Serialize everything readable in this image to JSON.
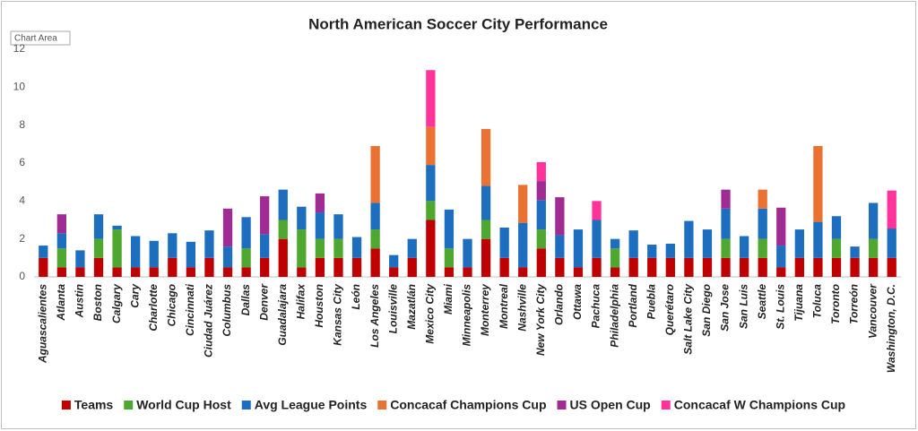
{
  "chart_data": {
    "type": "stacked-bar",
    "title": "North American Soccer City Performance",
    "tooltip": "Chart Area",
    "categories": [
      "Aguascalientes",
      "Atlanta",
      "Austin",
      "Boston",
      "Calgary",
      "Cary",
      "Charlotte",
      "Chicago",
      "Cincinnati",
      "Ciudad Juárez",
      "Columbus",
      "Dallas",
      "Denver",
      "Guadalajara",
      "Halifax",
      "Houston",
      "Kansas City",
      "León",
      "Los Angeles",
      "Louisville",
      "Mazatlán",
      "Mexico City",
      "Miami",
      "Minneapolis",
      "Monterrey",
      "Montreal",
      "Nashville",
      "New York City",
      "Orlando",
      "Ottawa",
      "Pachuca",
      "Philadelphia",
      "Portland",
      "Puebla",
      "Querétaro",
      "Salt Lake City",
      "San Diego",
      "San Jose",
      "San Luis",
      "Seattle",
      "St. Louis",
      "Tijuana",
      "Toluca",
      "Toronto",
      "Torreón",
      "Vancouver",
      "Washington, D.C."
    ],
    "series": [
      {
        "name": "Teams",
        "color": "#c00000",
        "values": [
          1,
          0.5,
          0.5,
          1,
          0.5,
          0.5,
          0.5,
          1,
          0.5,
          1,
          0.5,
          0.5,
          1,
          2,
          0.5,
          1,
          1,
          1,
          1.5,
          0.5,
          1,
          3,
          0.5,
          0.5,
          2,
          1,
          0.5,
          1.5,
          1,
          0.5,
          1,
          0.5,
          1,
          1,
          1,
          1,
          1,
          1,
          1,
          1,
          0.5,
          1,
          1,
          1,
          1,
          1,
          1
        ]
      },
      {
        "name": "World Cup Host",
        "color": "#4ea72e",
        "values": [
          0,
          1,
          0,
          1,
          2,
          0,
          0,
          0,
          0,
          0,
          0,
          1,
          0,
          1,
          2,
          1,
          1,
          0,
          1,
          0,
          0,
          1,
          1,
          0,
          1,
          0,
          0,
          1,
          0,
          0,
          0,
          1,
          0,
          0,
          0,
          0,
          0,
          1,
          0,
          1,
          0,
          0,
          0,
          1,
          0,
          1,
          0
        ]
      },
      {
        "name": "Avg League Points",
        "color": "#1e6ebf",
        "values": [
          0.65,
          0.8,
          0.9,
          1.3,
          0.2,
          1.65,
          1.4,
          1.3,
          1.35,
          1.45,
          1.1,
          1.65,
          1.25,
          1.6,
          1.2,
          1.4,
          1.3,
          1.1,
          1.4,
          0.65,
          1,
          1.9,
          2.05,
          1.5,
          1.8,
          1.6,
          2.35,
          1.55,
          1.2,
          2,
          2,
          0.5,
          1.45,
          0.7,
          0.75,
          1.95,
          1.5,
          1.6,
          1.15,
          1.6,
          1.15,
          1.5,
          1.9,
          1.2,
          0.6,
          1.9,
          1.55
        ]
      },
      {
        "name": "Concacaf Champions Cup",
        "color": "#e97132",
        "values": [
          0,
          0,
          0,
          0,
          0,
          0,
          0,
          0,
          0,
          0,
          0,
          0,
          0,
          0,
          0,
          0,
          0,
          0,
          3,
          0,
          0,
          2,
          0,
          0,
          3,
          0,
          2,
          0,
          0,
          0,
          0,
          0,
          0,
          0,
          0,
          0,
          0,
          0,
          0,
          1,
          0,
          0,
          4,
          0,
          0,
          0,
          0
        ]
      },
      {
        "name": "US Open Cup",
        "color": "#a02b93",
        "values": [
          0,
          1,
          0,
          0,
          0,
          0,
          0,
          0,
          0,
          0,
          2,
          0,
          2,
          0,
          0,
          1,
          0,
          0,
          0,
          0,
          0,
          0,
          0,
          0,
          0,
          0,
          0,
          1,
          2,
          0,
          0,
          0,
          0,
          0,
          0,
          0,
          0,
          1,
          0,
          0,
          2,
          0,
          0,
          0,
          0,
          0,
          0
        ]
      },
      {
        "name": "Concacaf W Champions Cup",
        "color": "#ff3399",
        "values": [
          0,
          0,
          0,
          0,
          0,
          0,
          0,
          0,
          0,
          0,
          0,
          0,
          0,
          0,
          0,
          0,
          0,
          0,
          0,
          0,
          0,
          3,
          0,
          0,
          0,
          0,
          0,
          1,
          0,
          0,
          1,
          0,
          0,
          0,
          0,
          0,
          0,
          0,
          0,
          0,
          0,
          0,
          0,
          0,
          0,
          0,
          2
        ]
      }
    ],
    "ylim": [
      0,
      12
    ],
    "yticks": [
      0,
      2,
      4,
      6,
      8,
      10,
      12
    ],
    "grid": false
  }
}
